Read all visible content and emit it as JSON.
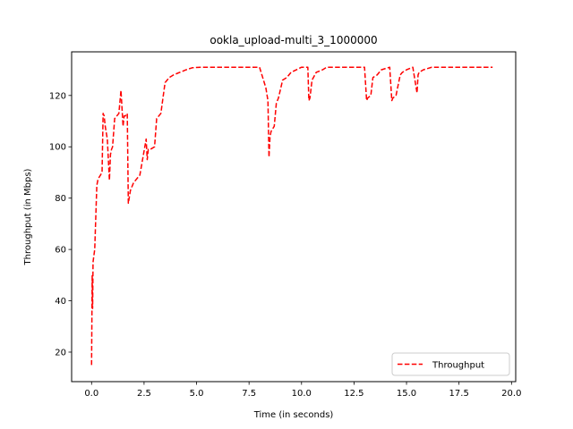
{
  "chart_data": {
    "type": "line",
    "title": "ookla_upload-multi_3_1000000",
    "xlabel": "Time (in seconds)",
    "ylabel": "Throughput (in Mbps)",
    "xlim": [
      -0.95,
      20.2
    ],
    "ylim": [
      8.5,
      137
    ],
    "xticks": [
      0.0,
      2.5,
      5.0,
      7.5,
      10.0,
      12.5,
      15.0,
      17.5,
      20.0
    ],
    "xtick_labels": [
      "0.0",
      "2.5",
      "5.0",
      "7.5",
      "10.0",
      "12.5",
      "15.0",
      "17.5",
      "20.0"
    ],
    "yticks": [
      20,
      40,
      60,
      80,
      100,
      120
    ],
    "ytick_labels": [
      "20",
      "40",
      "60",
      "80",
      "100",
      "120"
    ],
    "grid": false,
    "legend_position": "lower-right",
    "series": [
      {
        "name": "Throughput",
        "color": "#ff0000",
        "linestyle": "dashed",
        "x": [
          0.0,
          0.03,
          0.05,
          0.07,
          0.1,
          0.15,
          0.25,
          0.3,
          0.35,
          0.5,
          0.55,
          0.6,
          0.65,
          0.75,
          0.85,
          0.9,
          0.95,
          1.0,
          1.1,
          1.2,
          1.3,
          1.4,
          1.5,
          1.55,
          1.6,
          1.7,
          1.75,
          1.85,
          1.9,
          1.95,
          2.0,
          2.1,
          2.3,
          2.6,
          2.65,
          2.7,
          2.8,
          3.0,
          3.1,
          3.2,
          3.3,
          3.5,
          3.6,
          3.7,
          3.9,
          4.2,
          4.5,
          4.8,
          5.2,
          5.6,
          6.0,
          7.0,
          8.0,
          8.3,
          8.4,
          8.45,
          8.5,
          8.55,
          8.7,
          8.8,
          8.9,
          9.1,
          9.3,
          9.5,
          10.0,
          10.3,
          10.35,
          10.4,
          10.5,
          10.7,
          11.0,
          11.2,
          11.5,
          12.0,
          12.5,
          13.0,
          13.1,
          13.15,
          13.3,
          13.4,
          13.6,
          13.8,
          14.2,
          14.3,
          14.35,
          14.5,
          14.7,
          14.8,
          15.0,
          15.3,
          15.5,
          15.55,
          15.6,
          15.8,
          16.0,
          16.2,
          16.5,
          17.0,
          17.5,
          18.0,
          18.5,
          19.1
        ],
        "y": [
          15,
          50,
          37,
          55,
          57,
          60,
          85,
          87,
          88,
          90,
          113,
          112,
          108,
          103,
          87,
          97,
          99,
          100,
          111,
          112,
          113,
          122,
          108,
          112,
          112,
          113,
          78,
          83,
          84,
          85,
          86,
          87,
          89,
          103,
          95,
          99,
          99,
          100,
          111,
          112,
          113,
          125,
          126,
          127,
          128,
          129,
          130,
          130.8,
          131,
          131,
          131,
          131,
          131,
          123,
          118,
          96,
          104,
          106,
          108,
          117,
          119,
          126,
          127,
          129,
          131,
          131,
          118,
          119,
          126,
          129,
          130,
          131,
          131,
          131,
          131,
          131,
          118,
          119,
          120,
          127,
          128,
          130,
          131,
          118,
          119,
          120,
          128,
          129,
          130,
          131,
          121,
          128,
          129,
          130,
          130.5,
          131,
          131,
          131,
          131,
          131,
          131,
          131
        ]
      }
    ]
  }
}
